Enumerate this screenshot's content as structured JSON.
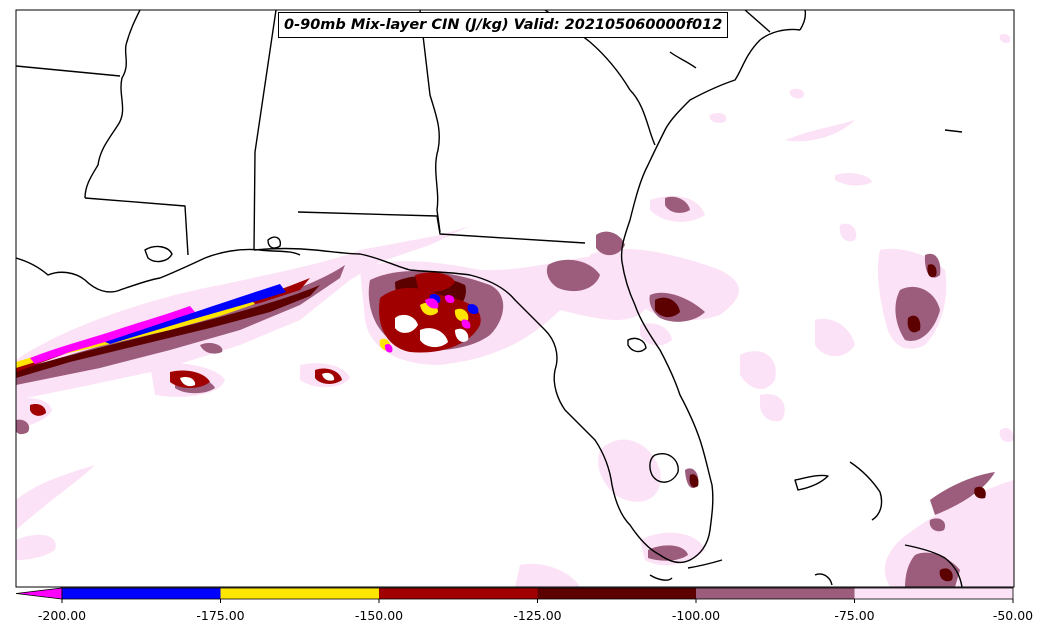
{
  "title": "0-90mb Mix-layer CIN (J/kg) Valid: 202105060000f012",
  "colorbar": {
    "levels": [
      -200,
      -175,
      -150,
      -125,
      -100,
      -75,
      -50
    ],
    "tick_labels": [
      "-200.00",
      "-175.00",
      "-150.00",
      "-125.00",
      "-100.00",
      "-75.00",
      "-50.00"
    ],
    "under_color": "#ff00ff",
    "colors": [
      "#0000ff",
      "#ffe600",
      "#a00000",
      "#5c0000",
      "#9c5c7c",
      "#fce2f6"
    ]
  },
  "colors": {
    "background": "#ffffff",
    "coastline": "#000000"
  }
}
